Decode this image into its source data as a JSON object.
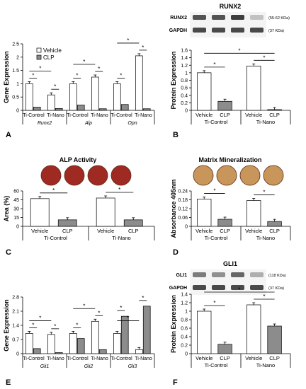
{
  "colors": {
    "vehicle": "#ffffff",
    "clp": "#8c8c8c",
    "axis": "#000000",
    "gel_bg": "#f4f4f4",
    "band": "#2a2a2a",
    "dish_alp": "#9e2a22",
    "dish_min": "#c8955a"
  },
  "panels": {
    "runx2_title": "RUNX2",
    "runx2_blot": {
      "label1": "RUNX2",
      "label2": "GAPDH",
      "kda1": "(55-62 KDa)",
      "kda2": "(37 KDa)"
    },
    "alp_title": "ALP Activity",
    "min_title": "Matrix Mineralization",
    "gli1_title": "GLI1",
    "gli1_blot": {
      "label1": "GLI1",
      "label2": "GAPDH",
      "kda1": "(118 KDa)",
      "kda2": "(37 KDa)"
    }
  },
  "chart_data": [
    {
      "id": "A",
      "letter": "A",
      "type": "bar",
      "ylabel": "Gene Expression",
      "ylim": [
        0,
        2.5
      ],
      "yticks": [
        "0",
        "0.5",
        "1",
        "1.5",
        "2",
        "2.5"
      ],
      "legend": [
        "Vehicle",
        "CLP"
      ],
      "groups": [
        {
          "gene": "Runx2",
          "categories": [
            "Ti-Control",
            "Ti-Nano"
          ],
          "vehicle": [
            1.0,
            0.58
          ],
          "clp": [
            0.12,
            0.07
          ]
        },
        {
          "gene": "Alp",
          "categories": [
            "Ti-Control",
            "Ti-Nano"
          ],
          "vehicle": [
            1.0,
            1.25
          ],
          "clp": [
            0.2,
            0.06
          ]
        },
        {
          "gene": "Opn",
          "categories": [
            "Ti-Control",
            "Ti-Nano"
          ],
          "vehicle": [
            1.0,
            2.05
          ],
          "clp": [
            0.22,
            0.06
          ]
        }
      ],
      "sig": "*"
    },
    {
      "id": "B",
      "letter": "B",
      "type": "bar",
      "ylabel": "Protein Expression",
      "ylim": [
        0,
        1.6
      ],
      "yticks": [
        "0",
        "0.2",
        "0.4",
        "0.6",
        "0.8",
        "1",
        "1.2",
        "1.4",
        "1.6"
      ],
      "groups": [
        {
          "group": "Ti-Control",
          "categories": [
            "Vehicle",
            "CLP"
          ],
          "values": [
            1.0,
            0.24
          ]
        },
        {
          "group": "Ti-Nano",
          "categories": [
            "Vehicle",
            "CLP"
          ],
          "values": [
            1.18,
            0.02
          ]
        }
      ],
      "sig": "*"
    },
    {
      "id": "C",
      "letter": "C",
      "type": "bar",
      "ylabel": "Area (%)",
      "ylim": [
        0,
        60
      ],
      "yticks": [
        "0",
        "15",
        "30",
        "45",
        "60"
      ],
      "groups": [
        {
          "group": "Ti-Control",
          "categories": [
            "Vehicle",
            "CLP"
          ],
          "values": [
            47,
            11
          ]
        },
        {
          "group": "Ti-Nano",
          "categories": [
            "Vehicle",
            "CLP"
          ],
          "values": [
            48,
            11
          ]
        }
      ],
      "sig": "*"
    },
    {
      "id": "D",
      "letter": "D",
      "type": "bar",
      "ylabel": "Absorbance 405nm",
      "ylim": [
        0,
        0.24
      ],
      "yticks": [
        "0",
        "0.06",
        "0.12",
        "0.18",
        "0.24"
      ],
      "groups": [
        {
          "group": "Ti-Control",
          "categories": [
            "Vehicle",
            "CLP"
          ],
          "values": [
            0.185,
            0.048
          ]
        },
        {
          "group": "Ti-Nano",
          "categories": [
            "Vehicle",
            "CLP"
          ],
          "values": [
            0.175,
            0.033
          ]
        }
      ],
      "sig": "*"
    },
    {
      "id": "E",
      "letter": "E",
      "type": "bar",
      "ylabel": "Gene Expression",
      "ylim": [
        0,
        2.8
      ],
      "yticks": [
        "0",
        "0.7",
        "1.4",
        "2.1",
        "2.8"
      ],
      "groups": [
        {
          "gene": "Gli1",
          "categories": [
            "Ti-Control",
            "Ti-Nano"
          ],
          "vehicle": [
            1.0,
            0.95
          ],
          "clp": [
            0.25,
            0.05
          ]
        },
        {
          "gene": "Gli2",
          "categories": [
            "Ti-Control",
            "Ti-Nano"
          ],
          "vehicle": [
            1.0,
            1.6
          ],
          "clp": [
            0.75,
            0.2
          ]
        },
        {
          "gene": "Gli3",
          "categories": [
            "Ti-Control",
            "Ti-Nano"
          ],
          "vehicle": [
            1.0,
            0.2
          ],
          "clp": [
            1.85,
            2.35
          ]
        }
      ],
      "sig": "*"
    },
    {
      "id": "F",
      "letter": "F",
      "type": "bar",
      "ylabel": "Protein Expression",
      "ylim": [
        0,
        1.4
      ],
      "yticks": [
        "0",
        "0.2",
        "0.4",
        "0.6",
        "0.8",
        "1",
        "1.2",
        "1.4"
      ],
      "groups": [
        {
          "group": "Ti-Control",
          "categories": [
            "Vehicle",
            "CLP"
          ],
          "values": [
            1.0,
            0.22
          ]
        },
        {
          "group": "Ti-Nano",
          "categories": [
            "Vehicle",
            "CLP"
          ],
          "values": [
            1.15,
            0.65
          ]
        }
      ],
      "sig": "*"
    }
  ]
}
